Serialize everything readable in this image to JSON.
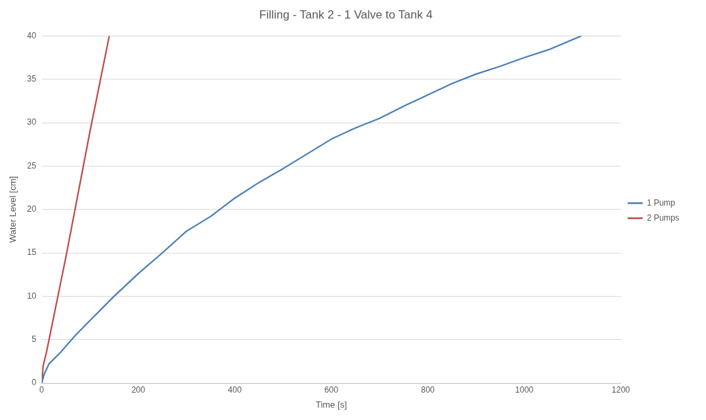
{
  "chart_data": {
    "type": "line",
    "title": "Filling - Tank 2 - 1 Valve to Tank 4",
    "xlabel": "Time [s]",
    "ylabel": "Water Level [cm]",
    "series": [
      {
        "name": "1 Pump",
        "color": "#4a7ebb",
        "x": [
          0,
          5,
          15,
          40,
          70,
          100,
          150,
          200,
          250,
          300,
          350,
          400,
          450,
          500,
          550,
          600,
          650,
          700,
          750,
          800,
          850,
          900,
          950,
          1000,
          1050,
          1118
        ],
        "values": [
          0,
          1,
          2.2,
          3.6,
          5.5,
          7.2,
          10,
          12.6,
          15,
          17.5,
          19.2,
          21.3,
          23.1,
          24.7,
          26.4,
          28.1,
          29.4,
          30.5,
          31.9,
          33.2,
          34.5,
          35.6,
          36.5,
          37.5,
          38.4,
          40
        ]
      },
      {
        "name": "2 Pumps",
        "color": "#be4b48",
        "x": [
          0,
          3,
          10,
          50,
          100,
          140
        ],
        "values": [
          0,
          2,
          3.6,
          14.5,
          29,
          40
        ]
      }
    ],
    "xlim": [
      0,
      1200
    ],
    "xticks": [
      0,
      200,
      400,
      600,
      800,
      1000,
      1200
    ],
    "ylim": [
      0,
      40
    ],
    "yticks": [
      0,
      5,
      10,
      15,
      20,
      25,
      30,
      35,
      40
    ],
    "grid": "y",
    "legend": "right",
    "marker": "none",
    "line_style": "solid"
  }
}
